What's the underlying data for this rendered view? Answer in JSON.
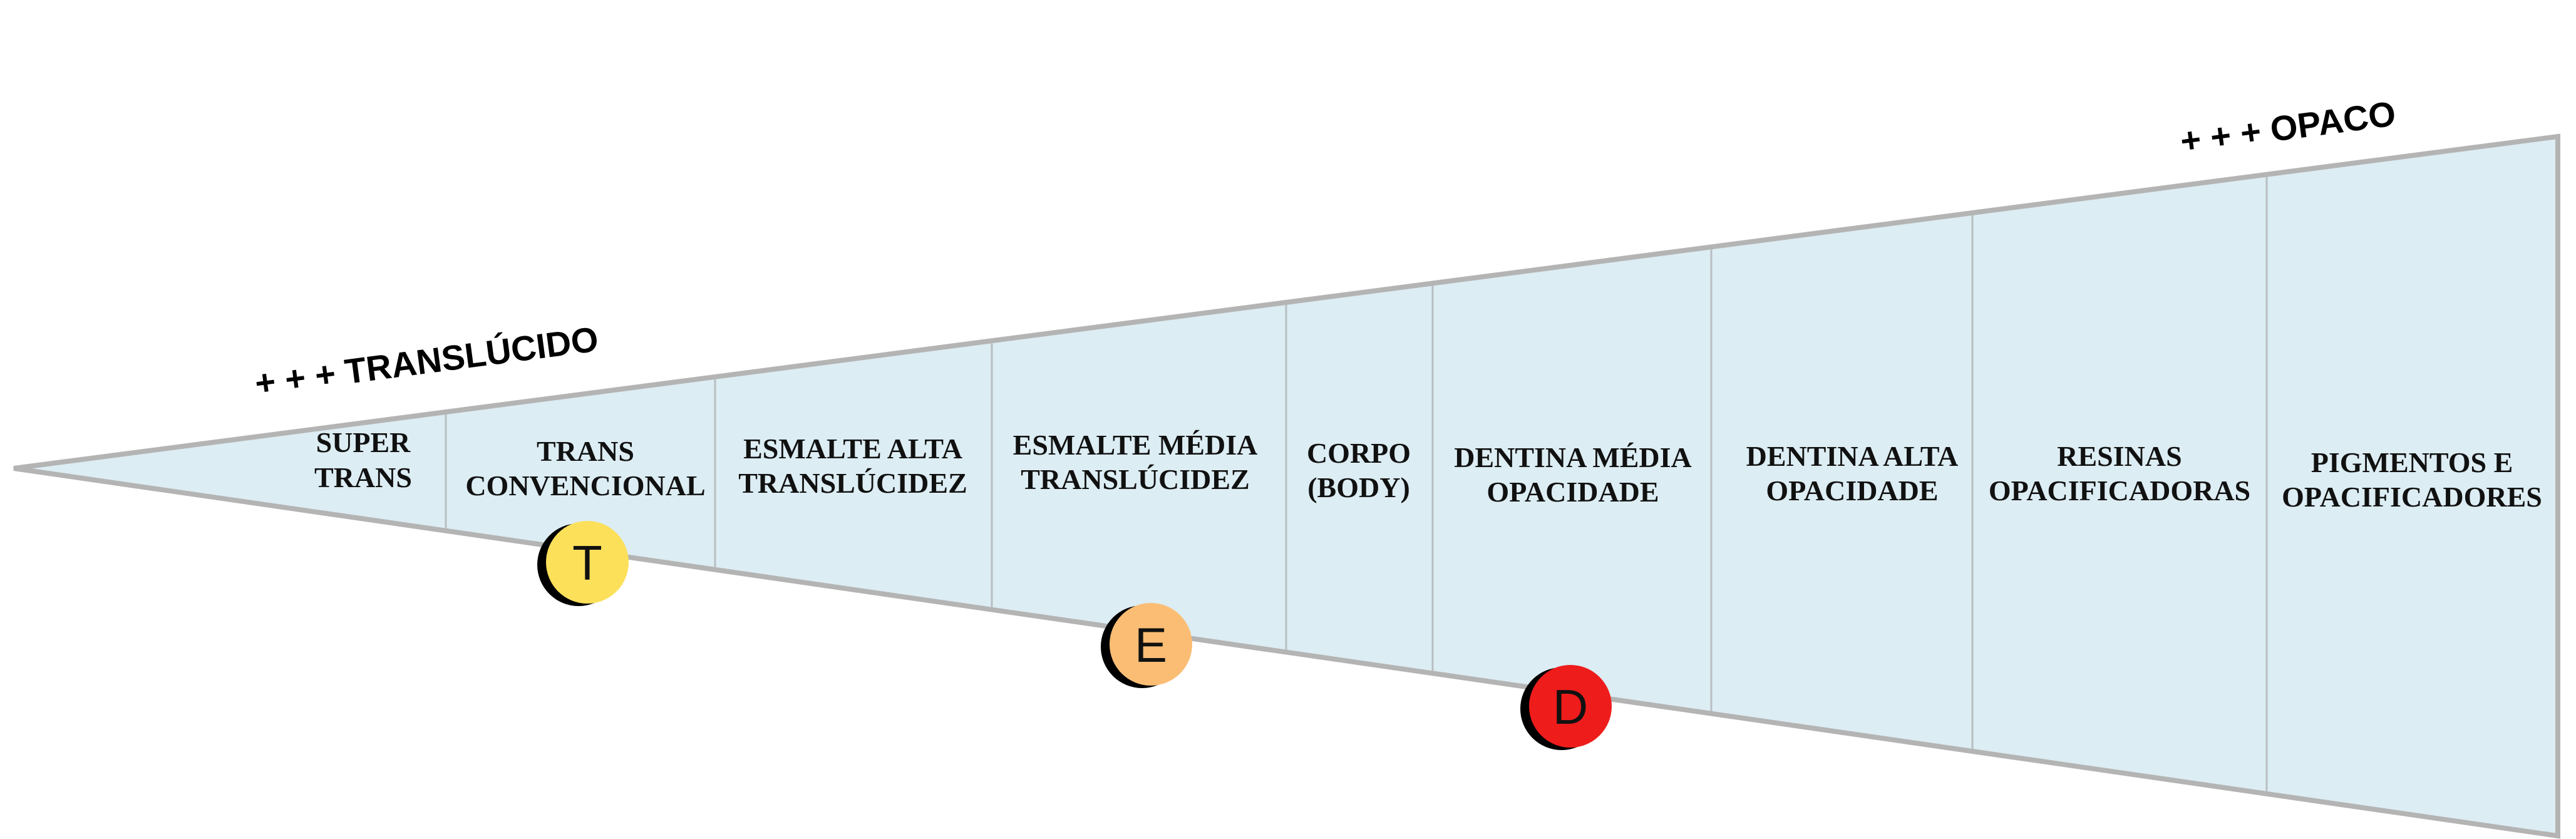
{
  "colors": {
    "fill": "#dcedf3",
    "outline": "#b4b4b4",
    "divider": "#b8bec2",
    "marker_shadow": "#000000"
  },
  "labels": {
    "translucent": "+ + + TRANSLÚCIDO",
    "opaque": "+ + + OPACO"
  },
  "segments": [
    {
      "line1": "SUPER",
      "line2": "TRANS"
    },
    {
      "line1": "TRANS",
      "line2": "CONVENCIONAL"
    },
    {
      "line1": "ESMALTE ALTA",
      "line2": "TRANSLÚCIDEZ"
    },
    {
      "line1": "ESMALTE MÉDIA",
      "line2": "TRANSLÚCIDEZ"
    },
    {
      "line1": "CORPO",
      "line2": "(BODY)"
    },
    {
      "line1": "DENTINA MÉDIA",
      "line2": "OPACIDADE"
    },
    {
      "line1": "DENTINA ALTA",
      "line2": "OPACIDADE"
    },
    {
      "line1": "RESINAS",
      "line2": "OPACIFICADORAS"
    },
    {
      "line1": "PIGMENTOS E",
      "line2": "OPACIFICADORES"
    }
  ],
  "markers": [
    {
      "letter": "T",
      "color": "#fce05a"
    },
    {
      "letter": "E",
      "color": "#fbbd74"
    },
    {
      "letter": "D",
      "color": "#ef1c1c"
    }
  ]
}
